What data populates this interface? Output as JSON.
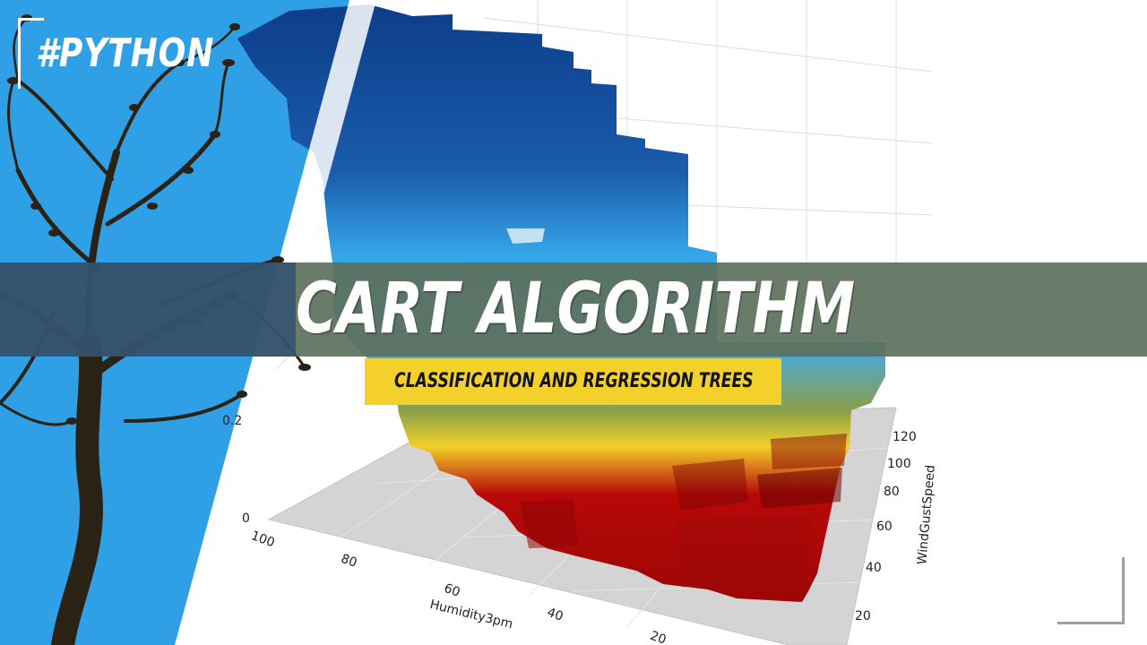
{
  "hashtag": "#PYTHON",
  "title": "CART ALGORITHM",
  "subtitle": "CLASSIFICATION AND REGRESSION TREES",
  "plot": {
    "x_axis_label": "Humidity3pm",
    "y_axis_label": "WindGustSpeed",
    "x_ticks": [
      "100",
      "80",
      "60",
      "40",
      "20"
    ],
    "y_ticks": [
      "120",
      "100",
      "80",
      "60",
      "40",
      "20"
    ],
    "z_ticks": [
      "0.2",
      "0"
    ]
  },
  "colors": {
    "blue_panel": "#2f9fe6",
    "surface_top": "#0d3d8a",
    "surface_mid": "#36a6e8",
    "surface_yellow": "#f2d02a",
    "surface_red": "#b80808",
    "title_band": "#5c705c",
    "subtitle_box": "#f4d02a",
    "tree": "#2a2214"
  },
  "icons": [
    "tree-silhouette-icon"
  ]
}
